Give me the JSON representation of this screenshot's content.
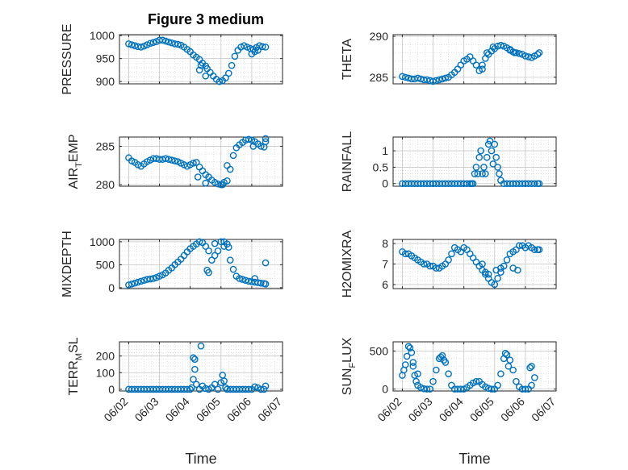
{
  "title": "Figure 3 medium",
  "colors": {
    "marker": "#0072BD",
    "axis": "#262626",
    "grid": "#dcdcdc"
  },
  "chart_data": [
    {
      "type": "scatter",
      "ylabel": "PRESSURE",
      "ylim": [
        895,
        1002
      ],
      "yticks": [
        900,
        950,
        1000
      ],
      "xlabel": "",
      "xticklabels_visible": false,
      "x": [
        0.0,
        0.1,
        0.2,
        0.3,
        0.4,
        0.5,
        0.6,
        0.7,
        0.8,
        0.9,
        1.0,
        1.1,
        1.2,
        1.3,
        1.4,
        1.5,
        1.6,
        1.7,
        1.8,
        1.9,
        2.0,
        2.1,
        2.2,
        2.3,
        2.4,
        2.5,
        2.55,
        2.65,
        2.75,
        2.85,
        2.95,
        3.05,
        3.15,
        3.25,
        3.35,
        3.45,
        3.55,
        3.65,
        3.75,
        3.85,
        3.95,
        4.05,
        4.15,
        4.25,
        4.35,
        4.45,
        2.3,
        2.35,
        2.5,
        4.0,
        4.1,
        4.2
      ],
      "y": [
        982,
        980,
        978,
        976,
        975,
        977,
        980,
        983,
        985,
        987,
        990,
        990,
        988,
        986,
        984,
        982,
        981,
        979,
        975,
        970,
        965,
        958,
        953,
        948,
        940,
        934,
        928,
        920,
        912,
        905,
        900,
        902,
        908,
        918,
        935,
        955,
        968,
        975,
        978,
        975,
        972,
        970,
        974,
        978,
        976,
        975,
        925,
        935,
        912,
        960,
        965,
        968
      ]
    },
    {
      "type": "scatter",
      "ylabel": "THETA",
      "ylim": [
        284.2,
        290.2
      ],
      "yticks": [
        285,
        290
      ],
      "xlabel": "",
      "xticklabels_visible": false,
      "x": [
        0.0,
        0.1,
        0.2,
        0.3,
        0.4,
        0.5,
        0.6,
        0.7,
        0.8,
        0.9,
        1.0,
        1.1,
        1.2,
        1.3,
        1.4,
        1.5,
        1.6,
        1.7,
        1.8,
        1.9,
        2.0,
        2.1,
        2.2,
        2.3,
        2.4,
        2.5,
        2.6,
        2.7,
        2.8,
        2.9,
        3.0,
        3.1,
        3.2,
        3.3,
        3.4,
        3.5,
        3.6,
        3.7,
        3.8,
        3.9,
        4.0,
        4.1,
        4.2,
        4.3,
        4.4,
        4.45,
        2.6,
        2.75,
        2.95,
        3.5,
        3.65
      ],
      "y": [
        285.1,
        285.0,
        284.9,
        284.8,
        284.8,
        284.9,
        284.8,
        284.7,
        284.7,
        284.6,
        284.5,
        284.6,
        284.7,
        284.8,
        284.9,
        285.0,
        285.3,
        285.6,
        286.0,
        286.5,
        287.0,
        287.2,
        287.5,
        287.0,
        286.5,
        285.8,
        286.5,
        287.3,
        287.8,
        288.2,
        288.5,
        288.8,
        288.9,
        288.8,
        288.6,
        288.3,
        288.1,
        288.0,
        287.9,
        287.8,
        287.6,
        287.5,
        287.4,
        287.6,
        287.8,
        288.0,
        286.0,
        288.0,
        288.7,
        288.4,
        288.0
      ]
    },
    {
      "type": "scatter",
      "ylabel": "AIR",
      "ylabel_sub": "T",
      "ylabel_rest": "EMP",
      "ylim": [
        279.8,
        286.2
      ],
      "yticks": [
        280,
        285
      ],
      "xlabel": "",
      "xticklabels_visible": false,
      "x": [
        0.0,
        0.1,
        0.2,
        0.3,
        0.4,
        0.5,
        0.6,
        0.7,
        0.8,
        0.9,
        1.0,
        1.1,
        1.2,
        1.3,
        1.4,
        1.5,
        1.6,
        1.7,
        1.8,
        1.9,
        2.0,
        2.1,
        2.2,
        2.3,
        2.4,
        2.5,
        2.6,
        2.7,
        2.8,
        2.9,
        3.0,
        3.1,
        3.2,
        3.3,
        3.4,
        3.5,
        3.6,
        3.7,
        3.8,
        3.9,
        4.0,
        4.1,
        4.2,
        4.3,
        4.4,
        4.45,
        2.25,
        2.5,
        3.05,
        3.2,
        4.05,
        4.45
      ],
      "y": [
        283.5,
        283.1,
        282.9,
        282.6,
        282.4,
        282.7,
        283.0,
        283.2,
        283.4,
        283.4,
        283.3,
        283.3,
        283.4,
        283.3,
        283.2,
        283.1,
        283.0,
        282.8,
        282.6,
        282.4,
        282.6,
        282.8,
        282.9,
        282.3,
        281.8,
        281.3,
        281.0,
        280.6,
        280.3,
        280.1,
        280.0,
        280.3,
        280.5,
        282.0,
        283.8,
        284.8,
        285.2,
        285.5,
        285.8,
        285.9,
        285.8,
        285.6,
        285.3,
        285.0,
        284.9,
        285.6,
        281.0,
        280.2,
        280.0,
        282.5,
        285.0,
        286.0
      ]
    },
    {
      "type": "scatter",
      "ylabel": "RAINFALL",
      "ylim": [
        -0.08,
        1.42
      ],
      "yticks": [
        0,
        0.5,
        1
      ],
      "xlabel": "",
      "xticklabels_visible": false,
      "x": [
        0.0,
        0.1,
        0.2,
        0.3,
        0.4,
        0.5,
        0.6,
        0.7,
        0.8,
        0.9,
        1.0,
        1.1,
        1.2,
        1.3,
        1.4,
        1.5,
        1.6,
        1.7,
        1.8,
        1.9,
        2.0,
        2.1,
        2.2,
        2.25,
        2.3,
        2.35,
        2.4,
        2.45,
        2.5,
        2.55,
        2.6,
        2.65,
        2.7,
        2.75,
        2.8,
        2.85,
        2.9,
        2.95,
        3.0,
        3.05,
        3.1,
        3.15,
        3.2,
        3.3,
        3.4,
        3.5,
        3.6,
        3.7,
        3.8,
        3.9,
        4.0,
        4.1,
        4.2,
        4.3,
        4.4,
        4.45
      ],
      "y": [
        0,
        0,
        0,
        0,
        0,
        0,
        0,
        0,
        0,
        0,
        0,
        0,
        0,
        0,
        0,
        0,
        0,
        0,
        0,
        0,
        0,
        0,
        0,
        0,
        0,
        0.3,
        0.5,
        0.3,
        0.8,
        1.0,
        0.3,
        0.5,
        0.3,
        0.8,
        1.2,
        1.3,
        1.0,
        0.6,
        1.2,
        0.8,
        0.5,
        0.3,
        0.1,
        0,
        0,
        0,
        0,
        0,
        0,
        0,
        0,
        0,
        0,
        0,
        0,
        0
      ]
    },
    {
      "type": "scatter",
      "ylabel": "MIXDEPTH",
      "ylim": [
        -20,
        1050
      ],
      "yticks": [
        0,
        500,
        1000
      ],
      "xlabel": "",
      "xticklabels_visible": false,
      "x": [
        0.0,
        0.1,
        0.2,
        0.3,
        0.4,
        0.5,
        0.6,
        0.7,
        0.8,
        0.9,
        1.0,
        1.1,
        1.2,
        1.3,
        1.4,
        1.5,
        1.6,
        1.7,
        1.8,
        1.9,
        2.0,
        2.1,
        2.2,
        2.3,
        2.4,
        2.5,
        2.6,
        2.7,
        2.8,
        2.9,
        3.0,
        3.1,
        3.2,
        3.3,
        3.4,
        3.5,
        3.6,
        3.7,
        3.8,
        3.9,
        4.0,
        4.1,
        4.2,
        4.3,
        4.4,
        4.45,
        2.55,
        2.6,
        2.8,
        3.1,
        3.25,
        4.1,
        4.45
      ],
      "y": [
        60,
        80,
        100,
        120,
        140,
        160,
        180,
        190,
        200,
        220,
        250,
        280,
        320,
        380,
        430,
        500,
        560,
        620,
        700,
        780,
        850,
        900,
        950,
        1000,
        980,
        900,
        800,
        600,
        700,
        800,
        1000,
        900,
        950,
        600,
        400,
        250,
        200,
        180,
        160,
        140,
        130,
        120,
        110,
        100,
        90,
        80,
        380,
        330,
        960,
        1000,
        880,
        200,
        540
      ]
    },
    {
      "type": "scatter",
      "ylabel": "H2OMIXRA",
      "ylim": [
        5.8,
        8.2
      ],
      "yticks": [
        6,
        7,
        8
      ],
      "xlabel": "",
      "xticklabels_visible": false,
      "x": [
        0.0,
        0.1,
        0.2,
        0.3,
        0.4,
        0.5,
        0.6,
        0.7,
        0.8,
        0.9,
        1.0,
        1.1,
        1.2,
        1.3,
        1.4,
        1.5,
        1.6,
        1.7,
        1.8,
        1.9,
        2.0,
        2.1,
        2.2,
        2.3,
        2.4,
        2.5,
        2.6,
        2.7,
        2.8,
        2.9,
        3.0,
        3.1,
        3.2,
        3.3,
        3.4,
        3.5,
        3.6,
        3.7,
        3.8,
        3.9,
        4.0,
        4.1,
        4.2,
        4.3,
        4.4,
        4.45,
        2.6,
        2.7,
        2.8,
        3.05,
        3.2,
        3.6,
        3.75
      ],
      "y": [
        7.6,
        7.5,
        7.5,
        7.4,
        7.3,
        7.2,
        7.1,
        7.0,
        7.0,
        6.9,
        6.9,
        6.8,
        6.8,
        6.9,
        7.0,
        7.2,
        7.5,
        7.8,
        7.7,
        7.6,
        7.8,
        7.7,
        7.5,
        7.3,
        7.1,
        6.9,
        6.7,
        6.5,
        6.3,
        6.1,
        6.0,
        6.3,
        6.6,
        6.9,
        7.2,
        7.5,
        7.6,
        7.7,
        7.9,
        7.9,
        7.8,
        7.9,
        7.8,
        7.7,
        7.7,
        7.7,
        7.0,
        6.6,
        6.5,
        6.7,
        6.8,
        6.8,
        6.7
      ]
    },
    {
      "type": "scatter",
      "ylabel": "TERR",
      "ylabel_sub": "M",
      "ylabel_rest": "SL",
      "ylim": [
        -10,
        285
      ],
      "yticks": [
        0,
        100,
        200
      ],
      "xlabel": "Time",
      "xlim": [
        -0.3,
        5.0
      ],
      "xticks": [
        0,
        1,
        2,
        3,
        4,
        5
      ],
      "xticklabels": [
        "06/02",
        "06/03",
        "06/04",
        "06/05",
        "06/06",
        "06/07"
      ],
      "x": [
        0.0,
        0.1,
        0.2,
        0.3,
        0.4,
        0.5,
        0.6,
        0.7,
        0.8,
        0.9,
        1.0,
        1.1,
        1.2,
        1.3,
        1.4,
        1.5,
        1.6,
        1.7,
        1.8,
        1.9,
        2.0,
        2.05,
        2.1,
        2.15,
        2.2,
        2.3,
        2.35,
        2.4,
        2.5,
        2.6,
        2.7,
        2.8,
        2.9,
        3.0,
        3.05,
        3.1,
        3.15,
        3.2,
        3.3,
        3.4,
        3.5,
        3.6,
        3.7,
        3.8,
        3.9,
        4.0,
        4.1,
        4.2,
        4.3,
        4.4,
        4.45,
        2.1,
        2.15
      ],
      "y": [
        0,
        0,
        0,
        0,
        0,
        0,
        0,
        0,
        0,
        0,
        0,
        0,
        0,
        0,
        0,
        0,
        0,
        0,
        0,
        0,
        0,
        10,
        190,
        180,
        30,
        0,
        260,
        20,
        5,
        0,
        10,
        30,
        0,
        40,
        85,
        50,
        10,
        0,
        0,
        0,
        0,
        0,
        0,
        0,
        0,
        0,
        15,
        10,
        0,
        0,
        20,
        60,
        120
      ]
    },
    {
      "type": "scatter",
      "ylabel": "SUN",
      "ylabel_sub": "F",
      "ylabel_rest": "LUX",
      "ylim": [
        -25,
        620
      ],
      "yticks": [
        0,
        500
      ],
      "xlabel": "Time",
      "xlim": [
        -0.3,
        5.0
      ],
      "xticks": [
        0,
        1,
        2,
        3,
        4,
        5
      ],
      "xticklabels": [
        "06/02",
        "06/03",
        "06/04",
        "06/05",
        "06/06",
        "06/07"
      ],
      "x": [
        0.0,
        0.05,
        0.1,
        0.15,
        0.2,
        0.25,
        0.3,
        0.35,
        0.4,
        0.45,
        0.5,
        0.6,
        0.7,
        0.8,
        0.9,
        1.0,
        1.1,
        1.2,
        1.3,
        1.4,
        1.5,
        1.6,
        1.7,
        1.8,
        1.9,
        2.0,
        2.1,
        2.2,
        2.3,
        2.4,
        2.5,
        2.6,
        2.7,
        2.8,
        2.9,
        3.0,
        3.1,
        3.2,
        3.3,
        3.4,
        3.5,
        3.6,
        3.7,
        3.8,
        3.9,
        4.0,
        4.1,
        4.2,
        4.3,
        0.35,
        0.5,
        1.25,
        1.35,
        3.35,
        3.45,
        4.15,
        4.2
      ],
      "y": [
        180,
        250,
        320,
        430,
        560,
        540,
        480,
        300,
        180,
        100,
        50,
        20,
        5,
        0,
        0,
        100,
        250,
        400,
        440,
        350,
        200,
        50,
        0,
        0,
        0,
        0,
        20,
        50,
        80,
        100,
        100,
        60,
        30,
        10,
        0,
        0,
        50,
        200,
        400,
        450,
        380,
        250,
        100,
        30,
        0,
        0,
        0,
        50,
        150,
        350,
        200,
        420,
        380,
        470,
        300,
        280,
        300
      ]
    }
  ]
}
